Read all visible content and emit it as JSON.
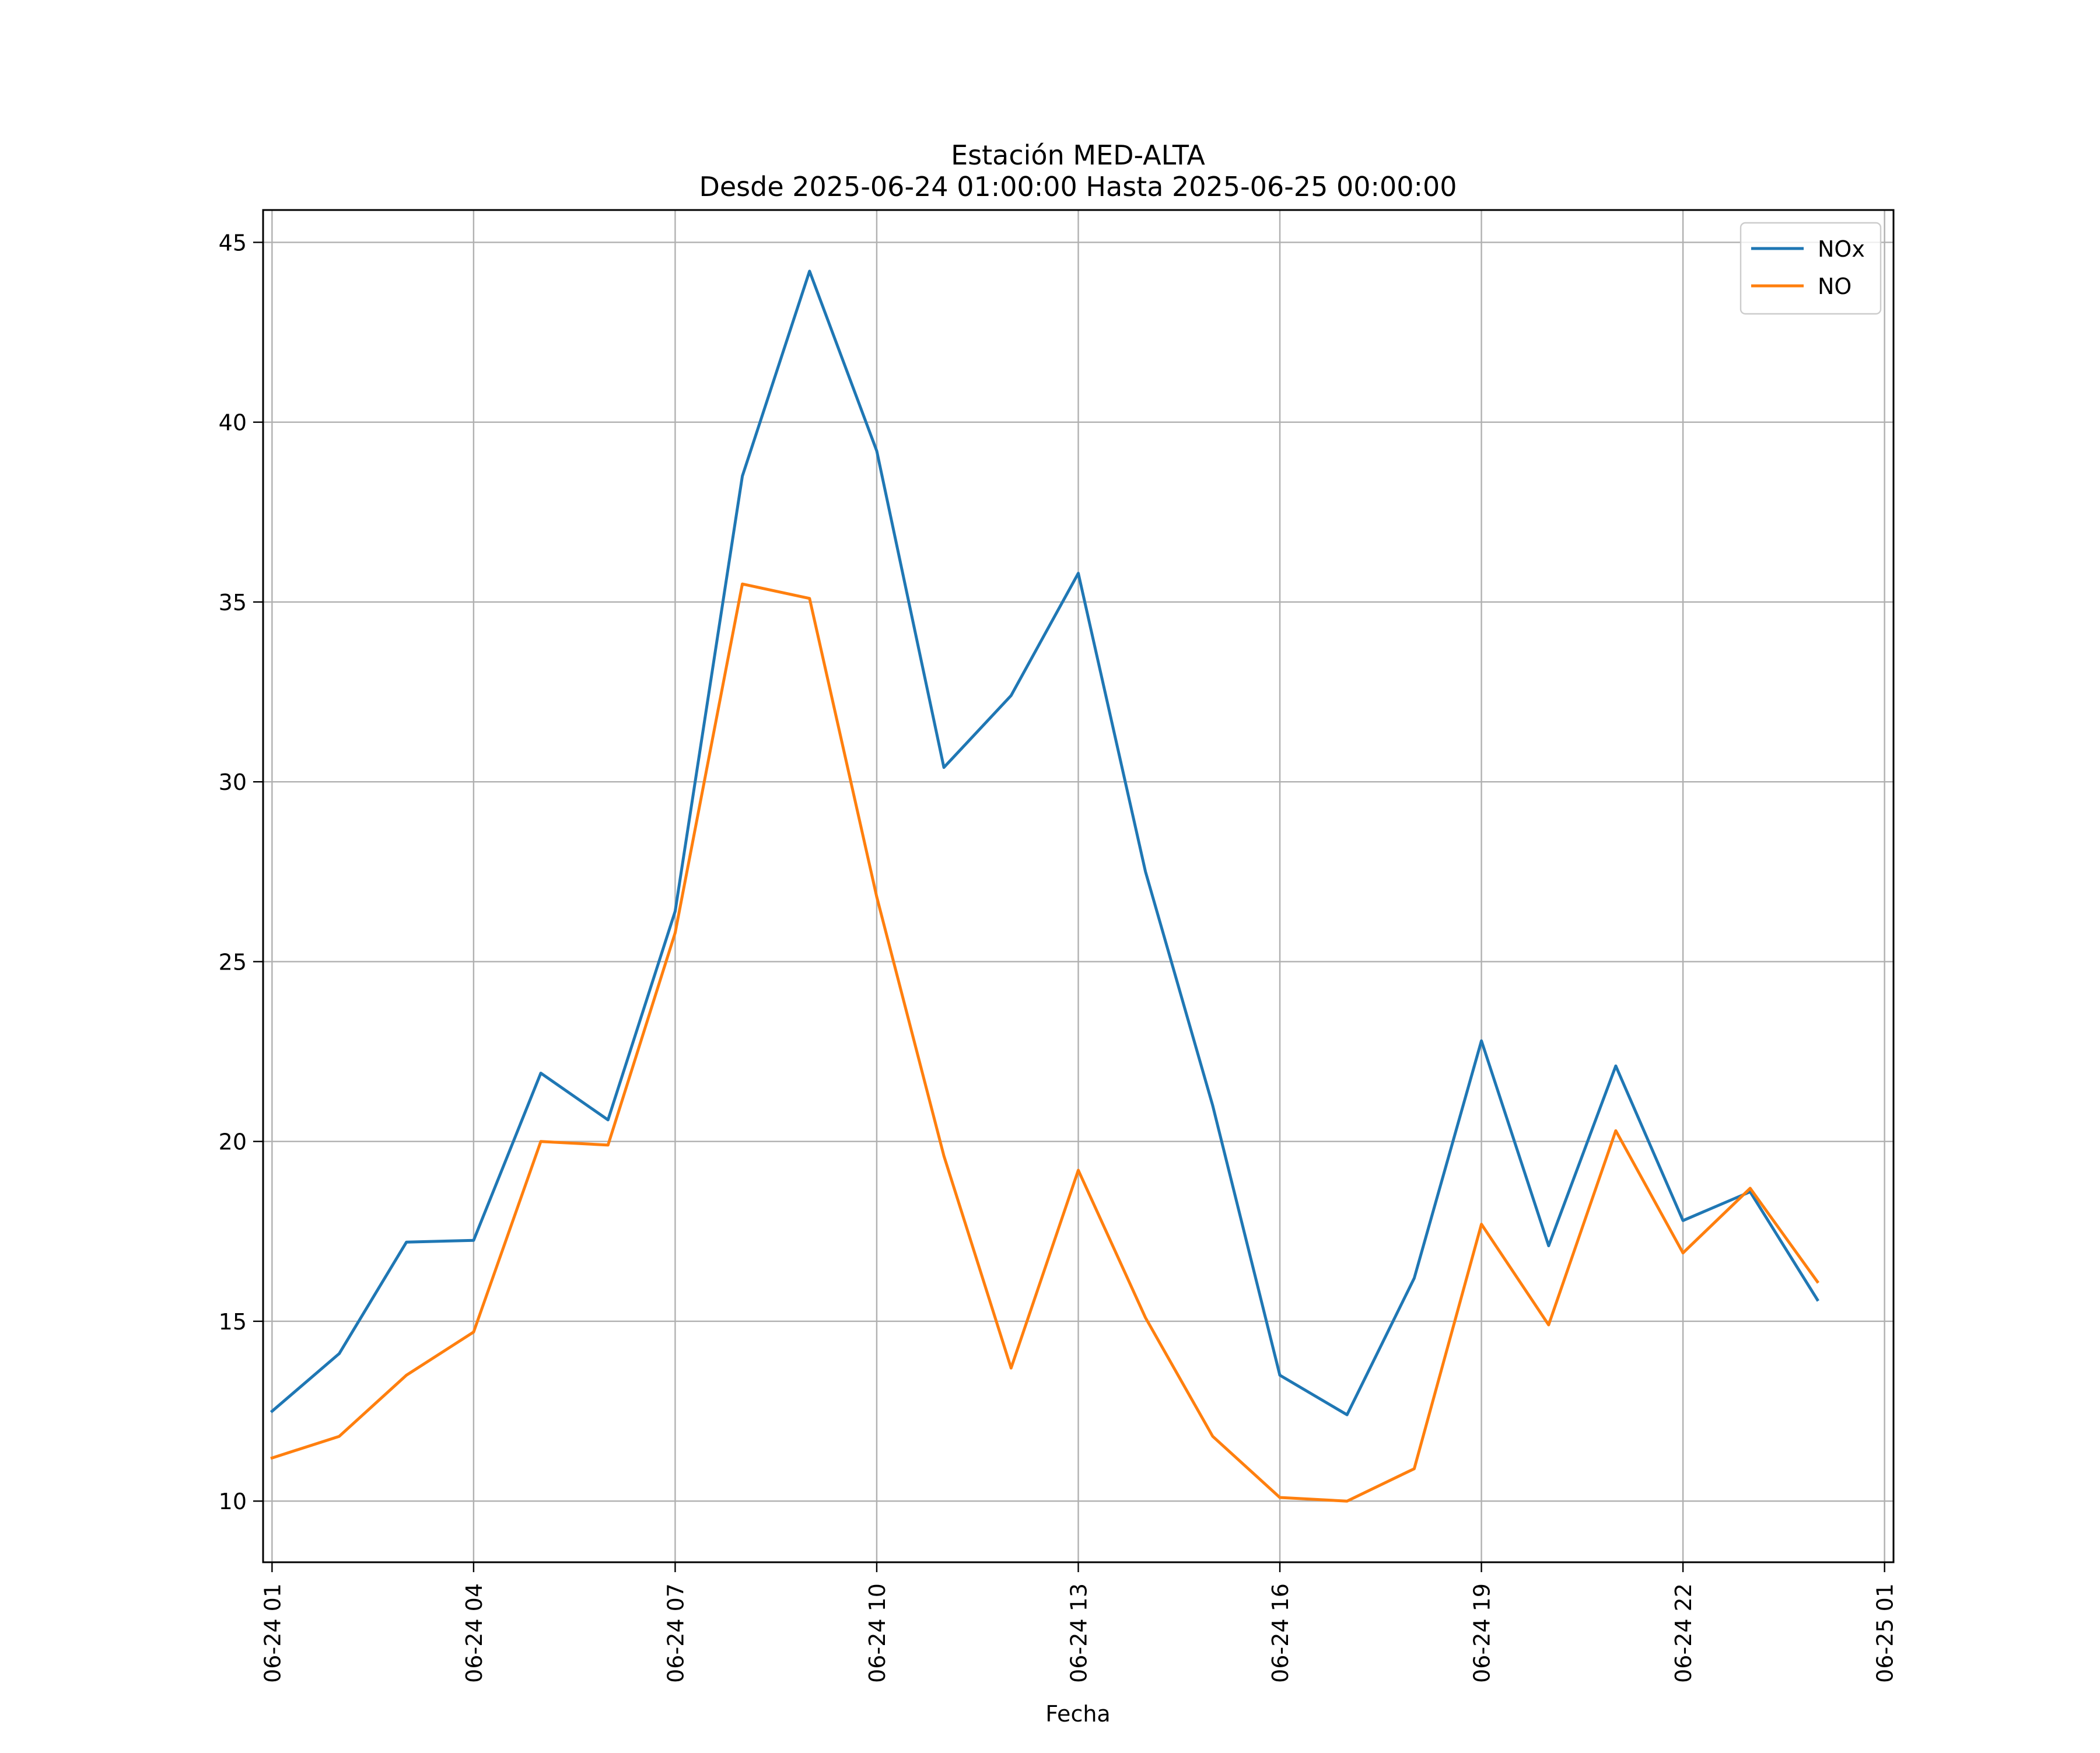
{
  "chart_data": {
    "type": "line",
    "title": "Estación MED-ALTA",
    "subtitle": "Desde 2025-06-24 01:00:00 Hasta 2025-06-25 00:00:00",
    "xlabel": "Fecha",
    "ylabel": "",
    "x": [
      "2025-06-24 01:00",
      "2025-06-24 02:00",
      "2025-06-24 03:00",
      "2025-06-24 04:00",
      "2025-06-24 05:00",
      "2025-06-24 06:00",
      "2025-06-24 07:00",
      "2025-06-24 08:00",
      "2025-06-24 09:00",
      "2025-06-24 10:00",
      "2025-06-24 11:00",
      "2025-06-24 12:00",
      "2025-06-24 13:00",
      "2025-06-24 14:00",
      "2025-06-24 15:00",
      "2025-06-24 16:00",
      "2025-06-24 17:00",
      "2025-06-24 18:00",
      "2025-06-24 19:00",
      "2025-06-24 20:00",
      "2025-06-24 21:00",
      "2025-06-24 22:00",
      "2025-06-24 23:00",
      "2025-06-25 00:00"
    ],
    "xlim": [
      "2025-06-24 00:52",
      "2025-06-25 01:08"
    ],
    "ylim": [
      8.3,
      45.9
    ],
    "x_ticks": [
      "06-24 01",
      "06-24 04",
      "06-24 07",
      "06-24 10",
      "06-24 13",
      "06-24 16",
      "06-24 19",
      "06-24 22",
      "06-25 01"
    ],
    "y_ticks": [
      "10",
      "15",
      "20",
      "25",
      "30",
      "35",
      "40",
      "45"
    ],
    "grid": true,
    "legend_position": "upper right",
    "series": [
      {
        "name": "NOx",
        "color": "#1f77b4",
        "values": [
          12.5,
          14.1,
          17.2,
          17.25,
          21.9,
          20.6,
          26.4,
          38.5,
          44.2,
          39.2,
          30.4,
          32.4,
          35.8,
          27.5,
          21.0,
          13.5,
          12.4,
          16.2,
          22.8,
          17.1,
          22.1,
          17.8,
          18.6,
          15.6
        ]
      },
      {
        "name": "NO",
        "color": "#ff7f0e",
        "values": [
          11.2,
          11.8,
          13.5,
          14.7,
          20.0,
          19.9,
          25.8,
          35.5,
          35.1,
          26.8,
          19.6,
          13.7,
          19.2,
          15.1,
          11.8,
          10.1,
          10.0,
          10.9,
          17.7,
          14.9,
          20.3,
          16.9,
          18.7,
          16.1
        ]
      }
    ]
  }
}
